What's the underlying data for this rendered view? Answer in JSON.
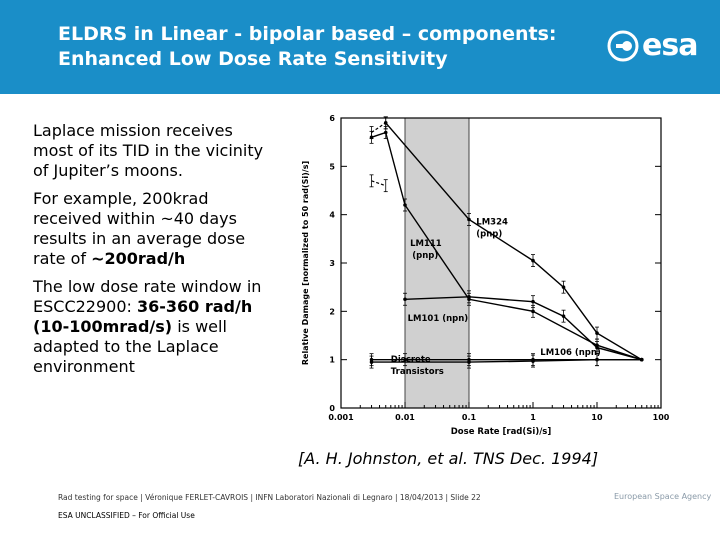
{
  "header": {
    "title_line1": "ELDRS in Linear - bipolar based – components:",
    "title_line2": "Enhanced Low Dose Rate Sensitivity",
    "logo_text": "esa",
    "background_color": "#1a8ec8"
  },
  "body": {
    "para1": "Laplace mission receives most of its TID in the vicinity of Jupiter’s moons.",
    "para2_prefix": "For example, 200krad received within ~40 days results in an average dose rate of ",
    "para2_bold": "~200rad/h",
    "para3_prefix": "The low dose rate window in ESCC22900: ",
    "para3_bold1": "36-360 rad/h",
    "para3_bold2": "(10-100mrad/s)",
    "para3_suffix": " is well adapted to the Laplace environment"
  },
  "caption": "[A. H. Johnston, et al. TNS Dec. 1994]",
  "footer": {
    "line1": "Rad testing for space | Véronique FERLET-CAVROIS | INFN Laboratori Nazionali di Legnaro | 18/04/2013 | Slide 22",
    "line2": "ESA UNCLASSIFIED – For Official Use",
    "agency": "European Space Agency"
  },
  "chart_data": {
    "type": "line",
    "xscale": "log",
    "xlim": [
      0.001,
      100
    ],
    "ylim": [
      0,
      6
    ],
    "x_ticks": [
      "0.001",
      "0.01",
      "0.1",
      "1",
      "10",
      "100"
    ],
    "y_ticks": [
      "0",
      "1",
      "2",
      "3",
      "4",
      "5",
      "6"
    ],
    "xlabel": "Dose Rate [rad(Si)/s]",
    "ylabel": "Relative Damage [normalized to 50 rad(Si)/s]",
    "shaded_window": [
      0.01,
      0.1
    ],
    "series": [
      {
        "name": "LM324 (pnp)",
        "points": [
          [
            0.005,
            5.9
          ],
          [
            0.1,
            3.9
          ],
          [
            1,
            3.05
          ],
          [
            3,
            2.5
          ],
          [
            10,
            1.55
          ],
          [
            50,
            1.0
          ]
        ]
      },
      {
        "name": "LM111 (pnp)",
        "points": [
          [
            0.003,
            5.6
          ],
          [
            0.005,
            5.7
          ],
          [
            0.01,
            4.2
          ],
          [
            0.1,
            2.25
          ],
          [
            1,
            2.0
          ],
          [
            10,
            1.3
          ],
          [
            50,
            1.0
          ]
        ]
      },
      {
        "name": "LM101 (npn)",
        "points": [
          [
            0.01,
            2.25
          ],
          [
            0.1,
            2.3
          ],
          [
            1,
            2.2
          ],
          [
            3,
            1.9
          ],
          [
            10,
            1.25
          ],
          [
            50,
            1.0
          ]
        ]
      },
      {
        "name": "LM106 (npn)",
        "points": [
          [
            0.003,
            1.0
          ],
          [
            0.01,
            1.0
          ],
          [
            0.1,
            1.0
          ],
          [
            1,
            1.0
          ],
          [
            10,
            1.0
          ],
          [
            50,
            1.0
          ]
        ]
      },
      {
        "name": "Discrete Transistors",
        "points": [
          [
            0.003,
            0.95
          ],
          [
            0.1,
            0.95
          ],
          [
            1,
            0.97
          ],
          [
            10,
            1.0
          ],
          [
            50,
            1.0
          ]
        ]
      }
    ],
    "dashed_segments": [
      {
        "points": [
          [
            0.003,
            5.7
          ],
          [
            0.005,
            5.9
          ]
        ]
      },
      {
        "points": [
          [
            0.003,
            4.7
          ],
          [
            0.005,
            4.6
          ]
        ]
      }
    ],
    "labels": [
      {
        "text": "LM324",
        "x": 0.13,
        "y": 3.8
      },
      {
        "text": "(pnp)",
        "x": 0.13,
        "y": 3.55
      },
      {
        "text": "LM111",
        "x": 0.012,
        "y": 3.35
      },
      {
        "text": "(pnp)",
        "x": 0.013,
        "y": 3.1
      },
      {
        "text": "LM101 (npn)",
        "x": 0.011,
        "y": 1.8
      },
      {
        "text": "LM106 (npn)",
        "x": 1.3,
        "y": 1.1
      },
      {
        "text": "Discrete",
        "x": 0.006,
        "y": 0.95
      },
      {
        "text": "Transistors",
        "x": 0.006,
        "y": 0.7
      }
    ]
  }
}
